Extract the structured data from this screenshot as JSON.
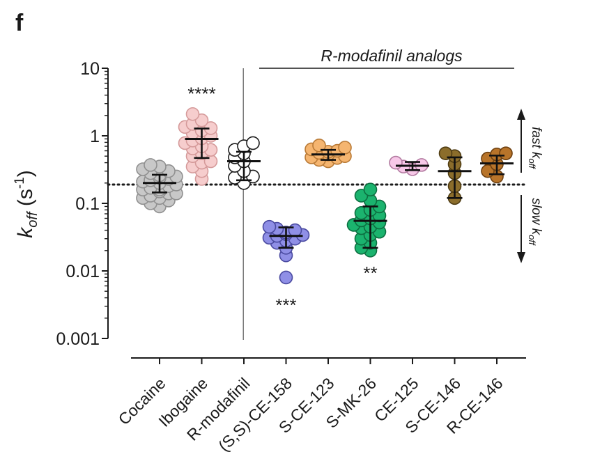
{
  "panel_label": "f",
  "chart_data": {
    "type": "scatter",
    "yscale": "log",
    "ylim": [
      0.001,
      10
    ],
    "ylabel_main": "k",
    "ylabel_sub": "off",
    "ylabel_unit": " (s",
    "ylabel_exp": "-1",
    "ylabel_close": ")",
    "yticks": [
      {
        "value": 10,
        "label": "10"
      },
      {
        "value": 1,
        "label": "1"
      },
      {
        "value": 0.1,
        "label": "0.1"
      },
      {
        "value": 0.01,
        "label": "0.01"
      },
      {
        "value": 0.001,
        "label": "0.001"
      }
    ],
    "threshold": 0.19,
    "group_label": "R-modafinil analogs",
    "fast_label_main": "fast k",
    "fast_label_sub": "off",
    "slow_label_main": "slow k",
    "slow_label_sub": "off",
    "categories": [
      {
        "name": "Cocaine",
        "fill": "#c8c8c8",
        "stroke": "#909090",
        "mean": 0.2,
        "sd": [
          0.145,
          0.265
        ],
        "points": [
          0.09,
          0.1,
          0.11,
          0.12,
          0.12,
          0.13,
          0.14,
          0.15,
          0.16,
          0.17,
          0.18,
          0.19,
          0.2,
          0.21,
          0.22,
          0.23,
          0.24,
          0.25,
          0.26,
          0.28,
          0.3,
          0.32,
          0.35,
          0.37,
          0.16,
          0.2,
          0.24,
          0.14
        ]
      },
      {
        "name": "Ibogaine",
        "fill": "#f6cdcd",
        "stroke": "#d59a9a",
        "mean": 0.9,
        "sd": [
          0.47,
          1.28
        ],
        "points": [
          0.23,
          0.3,
          0.35,
          0.42,
          0.5,
          0.55,
          0.62,
          0.7,
          0.78,
          0.85,
          0.92,
          1.0,
          1.1,
          1.2,
          1.35,
          1.5,
          1.7,
          2.1,
          0.4,
          0.65,
          1.3
        ]
      },
      {
        "name": "R-modafinil",
        "fill": "#ffffff",
        "stroke": "#1a1a1a",
        "mean": 0.42,
        "sd": [
          0.22,
          0.58
        ],
        "points": [
          0.2,
          0.24,
          0.3,
          0.36,
          0.42,
          0.48,
          0.55,
          0.62,
          0.7,
          0.78,
          0.25
        ]
      },
      {
        "name": "(S,S)-CE-158",
        "fill": "#8f8fe6",
        "stroke": "#4a4aa0",
        "mean": 0.033,
        "sd": [
          0.022,
          0.044
        ],
        "points": [
          0.008,
          0.017,
          0.022,
          0.026,
          0.028,
          0.031,
          0.033,
          0.035,
          0.037,
          0.04,
          0.042,
          0.045,
          0.03,
          0.034
        ]
      },
      {
        "name": "S-CE-123",
        "fill": "#f5b570",
        "stroke": "#b97a36",
        "mean": 0.53,
        "sd": [
          0.44,
          0.62
        ],
        "points": [
          0.42,
          0.44,
          0.47,
          0.5,
          0.53,
          0.56,
          0.6,
          0.63,
          0.67,
          0.72,
          0.48,
          0.58
        ]
      },
      {
        "name": "S-MK-26",
        "fill": "#1bb36e",
        "stroke": "#0d6e40",
        "mean": 0.055,
        "sd": [
          0.022,
          0.09
        ],
        "points": [
          0.02,
          0.022,
          0.026,
          0.03,
          0.034,
          0.038,
          0.043,
          0.048,
          0.052,
          0.056,
          0.06,
          0.066,
          0.072,
          0.08,
          0.09,
          0.11,
          0.13,
          0.16,
          0.045
        ]
      },
      {
        "name": "CE-125",
        "fill": "#f7c8e8",
        "stroke": "#b27aa0",
        "mean": 0.36,
        "sd": [
          0.31,
          0.41
        ],
        "points": [
          0.32,
          0.35,
          0.37,
          0.4
        ]
      },
      {
        "name": "S-CE-146",
        "fill": "#8b6d2b",
        "stroke": "#4f3c13",
        "mean": 0.3,
        "sd": [
          0.12,
          0.48
        ],
        "points": [
          0.12,
          0.18,
          0.28,
          0.38,
          0.5,
          0.55
        ]
      },
      {
        "name": "R-CE-146",
        "fill": "#b8742a",
        "stroke": "#6e4010",
        "mean": 0.39,
        "sd": [
          0.27,
          0.51
        ],
        "points": [
          0.25,
          0.3,
          0.38,
          0.46,
          0.53,
          0.55
        ]
      }
    ],
    "annotations": [
      {
        "category_index": 1,
        "text": "****",
        "value": 4.3
      },
      {
        "category_index": 3,
        "text": "***",
        "value": 0.0032
      },
      {
        "category_index": 5,
        "text": "**",
        "value": 0.0095
      }
    ]
  }
}
